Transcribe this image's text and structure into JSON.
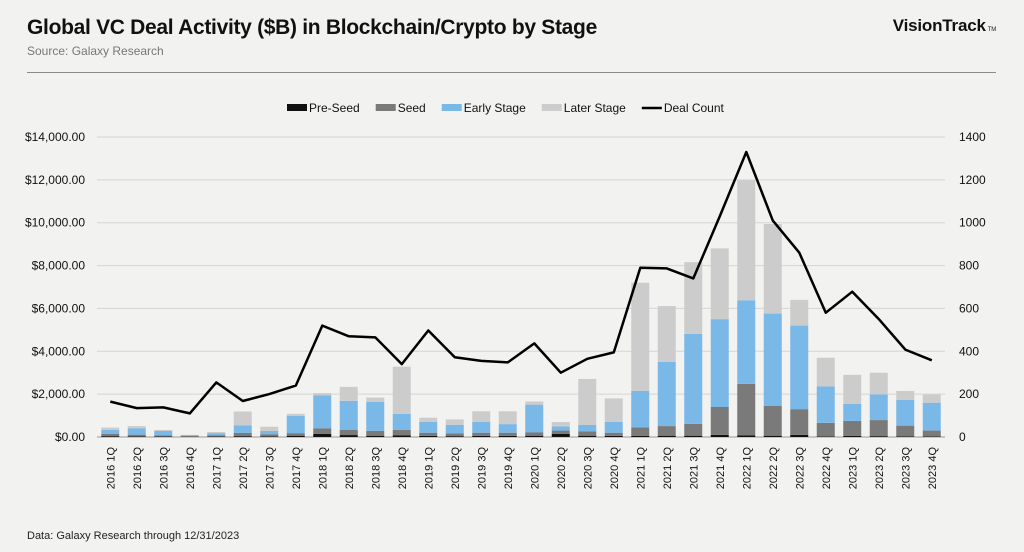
{
  "header": {
    "title": "Global VC Deal Activity ($B) in Blockchain/Crypto by Stage",
    "source": "Source: Galaxy Research",
    "brand": "VisionTrack",
    "brand_tm": "TM"
  },
  "footer": {
    "note": "Data: Galaxy Research through 12/31/2023"
  },
  "colors": {
    "pre_seed": "#111111",
    "seed": "#7a7a7a",
    "early": "#7ab8e8",
    "later": "#cccccc",
    "deal_count": "#000000",
    "grid": "#d4d4d4"
  },
  "chart_data": {
    "type": "bar",
    "stacked": true,
    "title": "Global VC Deal Activity ($B) in Blockchain/Crypto by Stage",
    "legend_position": "top",
    "grid": true,
    "y_left": {
      "ticks": [
        "$0.00",
        "$2,000.00",
        "$4,000.00",
        "$6,000.00",
        "$8,000.00",
        "$10,000.00",
        "$12,000.00",
        "$14,000.00"
      ],
      "lim": [
        0,
        14000
      ]
    },
    "y_right": {
      "ticks": [
        "0",
        "200",
        "400",
        "600",
        "800",
        "1000",
        "1200",
        "1400"
      ],
      "lim": [
        0,
        1400
      ]
    },
    "categories": [
      "2016 1Q",
      "2016 2Q",
      "2016 3Q",
      "2016 4Q",
      "2017 1Q",
      "2017 2Q",
      "2017 3Q",
      "2017 4Q",
      "2018 1Q",
      "2018 2Q",
      "2018 3Q",
      "2018 4Q",
      "2019 1Q",
      "2019 2Q",
      "2019 3Q",
      "2019 4Q",
      "2020 1Q",
      "2020 2Q",
      "2020 3Q",
      "2020 4Q",
      "2021 1Q",
      "2021 2Q",
      "2021 3Q",
      "2021 4Q",
      "2022 1Q",
      "2022 2Q",
      "2022 3Q",
      "2022 4Q",
      "2023 1Q",
      "2023 2Q",
      "2023 3Q",
      "2023 4Q"
    ],
    "series": [
      {
        "name": "Pre-Seed",
        "axis": "left",
        "kind": "bar",
        "values": [
          40,
          30,
          20,
          10,
          20,
          40,
          30,
          60,
          150,
          90,
          60,
          80,
          50,
          40,
          50,
          50,
          60,
          150,
          60,
          50,
          50,
          60,
          60,
          100,
          80,
          60,
          100,
          20,
          50,
          40,
          30,
          20
        ]
      },
      {
        "name": "Seed",
        "axis": "left",
        "kind": "bar",
        "values": [
          100,
          80,
          60,
          40,
          60,
          150,
          100,
          120,
          250,
          250,
          230,
          250,
          150,
          130,
          150,
          150,
          150,
          150,
          200,
          150,
          400,
          450,
          550,
          1300,
          2400,
          1400,
          1200,
          640,
          700,
          750,
          500,
          280
        ]
      },
      {
        "name": "Early Stage",
        "axis": "left",
        "kind": "bar",
        "values": [
          200,
          300,
          200,
          40,
          100,
          350,
          150,
          800,
          1550,
          1350,
          1350,
          750,
          500,
          400,
          500,
          400,
          1300,
          200,
          300,
          500,
          1700,
          3000,
          4200,
          4100,
          3900,
          4300,
          3900,
          1700,
          800,
          1200,
          1200,
          1300
        ]
      },
      {
        "name": "Later Stage",
        "axis": "left",
        "kind": "bar",
        "values": [
          100,
          100,
          50,
          10,
          50,
          650,
          200,
          100,
          100,
          650,
          200,
          2200,
          200,
          250,
          500,
          600,
          150,
          200,
          2150,
          1100,
          5050,
          2600,
          3350,
          3300,
          5600,
          4180,
          1200,
          1340,
          1350,
          1010,
          420,
          380
        ]
      },
      {
        "name": "Deal Count",
        "axis": "right",
        "kind": "line",
        "values": [
          165,
          135,
          138,
          110,
          255,
          168,
          200,
          240,
          520,
          470,
          465,
          340,
          497,
          372,
          355,
          348,
          437,
          300,
          365,
          395,
          790,
          787,
          740,
          1030,
          1330,
          1010,
          860,
          580,
          678,
          550,
          408,
          358
        ]
      }
    ]
  }
}
